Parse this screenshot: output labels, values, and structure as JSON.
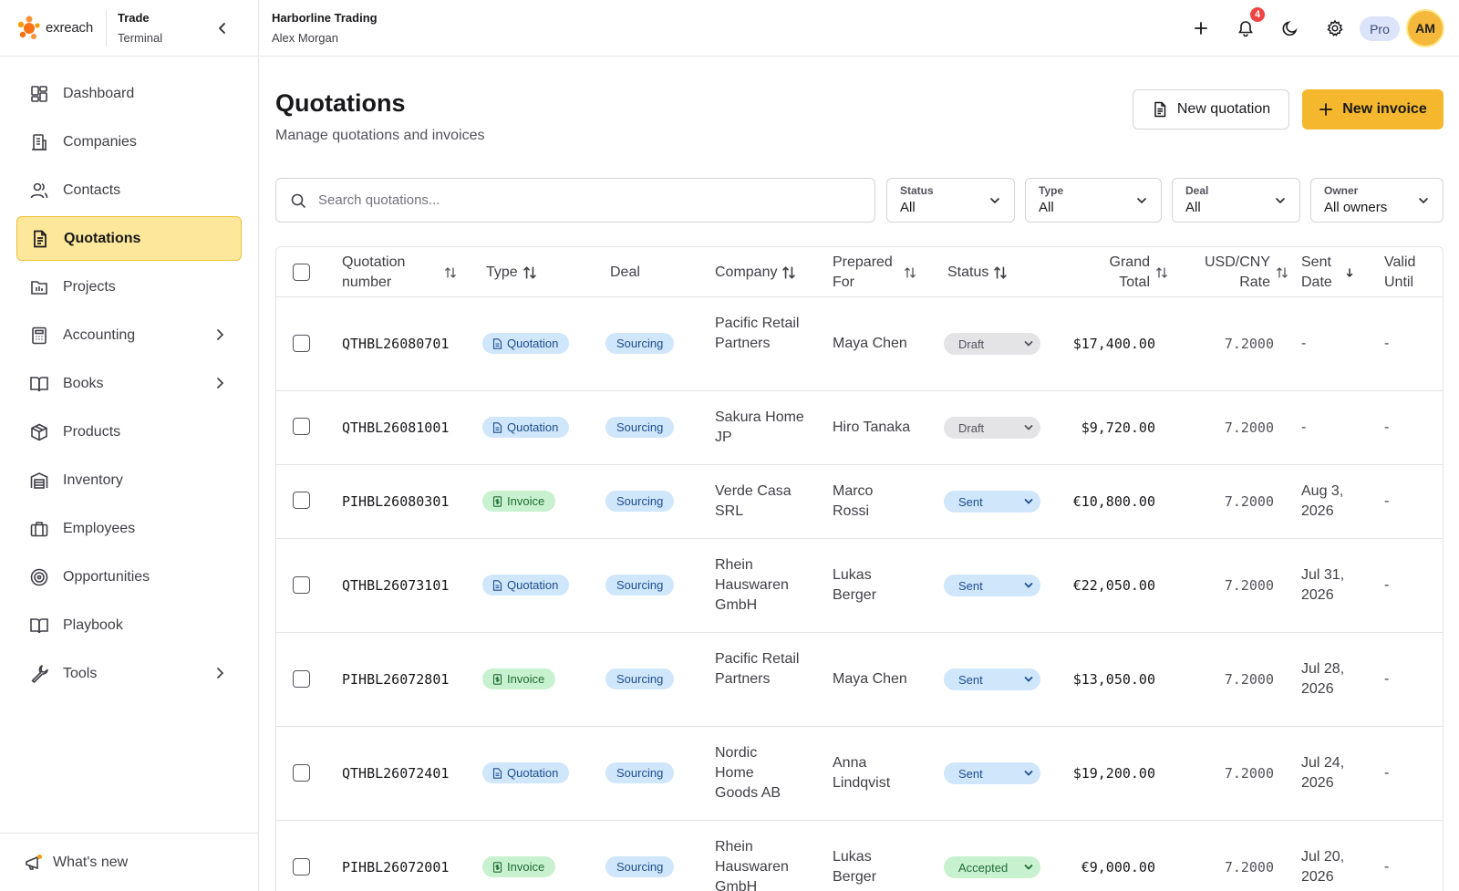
{
  "brand": {
    "logo_text": "exreach",
    "line1": "Trade",
    "line2": "Terminal"
  },
  "org": {
    "name": "Harborline Trading",
    "user": "Alex Morgan"
  },
  "topbar": {
    "notifications": "4",
    "plan": "Pro",
    "avatar_initials": "AM"
  },
  "sidebar": {
    "items": [
      {
        "label": "Dashboard",
        "icon": "dashboard-icon"
      },
      {
        "label": "Companies",
        "icon": "building-icon"
      },
      {
        "label": "Contacts",
        "icon": "users-icon"
      },
      {
        "label": "Quotations",
        "icon": "document-icon",
        "active": true
      },
      {
        "label": "Projects",
        "icon": "folder-icon"
      },
      {
        "label": "Accounting",
        "icon": "calculator-icon",
        "expandable": true
      },
      {
        "label": "Books",
        "icon": "book-open-icon",
        "expandable": true
      },
      {
        "label": "Products",
        "icon": "box-icon"
      },
      {
        "label": "Inventory",
        "icon": "warehouse-icon"
      },
      {
        "label": "Employees",
        "icon": "briefcase-icon"
      },
      {
        "label": "Opportunities",
        "icon": "target-icon"
      },
      {
        "label": "Playbook",
        "icon": "book-icon"
      },
      {
        "label": "Tools",
        "icon": "wrench-icon",
        "expandable": true
      }
    ],
    "footer": "What's new"
  },
  "page": {
    "title": "Quotations",
    "subtitle": "Manage quotations and invoices",
    "new_quotation": "New quotation",
    "new_invoice": "New invoice"
  },
  "search": {
    "placeholder": "Search quotations..."
  },
  "filters": [
    {
      "label": "Status",
      "value": "All"
    },
    {
      "label": "Type",
      "value": "All"
    },
    {
      "label": "Deal",
      "value": "All"
    },
    {
      "label": "Owner",
      "value": "All owners"
    }
  ],
  "table": {
    "columns": {
      "quotation_number": "Quotation number",
      "type": "Type",
      "deal": "Deal",
      "company": "Company",
      "prepared_for": "Prepared For",
      "status": "Status",
      "grand_total": "Grand Total",
      "rate": "USD/CNY Rate",
      "sent_date": "Sent Date",
      "valid_until": "Valid Until"
    },
    "rows": [
      {
        "number": "QTHBL26080701",
        "type": "Quotation",
        "deal": "Sourcing",
        "company": "Pacific Retail Partners",
        "prepared_for": "Maya Chen",
        "status": "Draft",
        "total": "$17,400.00",
        "rate": "7.2000",
        "sent": "-",
        "valid": "-"
      },
      {
        "number": "QTHBL26081001",
        "type": "Quotation",
        "deal": "Sourcing",
        "company": "Sakura Home JP",
        "prepared_for": "Hiro Tanaka",
        "status": "Draft",
        "total": "$9,720.00",
        "rate": "7.2000",
        "sent": "-",
        "valid": "-"
      },
      {
        "number": "PIHBL26080301",
        "type": "Invoice",
        "deal": "Sourcing",
        "company": "Verde Casa SRL",
        "prepared_for": "Marco Rossi",
        "status": "Sent",
        "total": "€10,800.00",
        "rate": "7.2000",
        "sent": "Aug 3, 2026",
        "valid": "-"
      },
      {
        "number": "QTHBL26073101",
        "type": "Quotation",
        "deal": "Sourcing",
        "company": "Rhein Hauswaren GmbH",
        "prepared_for": "Lukas Berger",
        "status": "Sent",
        "total": "€22,050.00",
        "rate": "7.2000",
        "sent": "Jul 31, 2026",
        "valid": "-"
      },
      {
        "number": "PIHBL26072801",
        "type": "Invoice",
        "deal": "Sourcing",
        "company": "Pacific Retail Partners",
        "prepared_for": "Maya Chen",
        "status": "Sent",
        "total": "$13,050.00",
        "rate": "7.2000",
        "sent": "Jul 28, 2026",
        "valid": "-"
      },
      {
        "number": "QTHBL26072401",
        "type": "Quotation",
        "deal": "Sourcing",
        "company": "Nordic Home Goods AB",
        "prepared_for": "Anna Lindqvist",
        "status": "Sent",
        "total": "$19,200.00",
        "rate": "7.2000",
        "sent": "Jul 24, 2026",
        "valid": "-"
      },
      {
        "number": "PIHBL26072001",
        "type": "Invoice",
        "deal": "Sourcing",
        "company": "Rhein Hauswaren GmbH",
        "prepared_for": "Lukas Berger",
        "status": "Accepted",
        "total": "€9,000.00",
        "rate": "7.2000",
        "sent": "Jul 20, 2026",
        "valid": "-"
      }
    ]
  },
  "colors": {
    "accent": "#f4b72e",
    "active_nav_bg": "#fde79a",
    "badge_red": "#ef4444"
  }
}
